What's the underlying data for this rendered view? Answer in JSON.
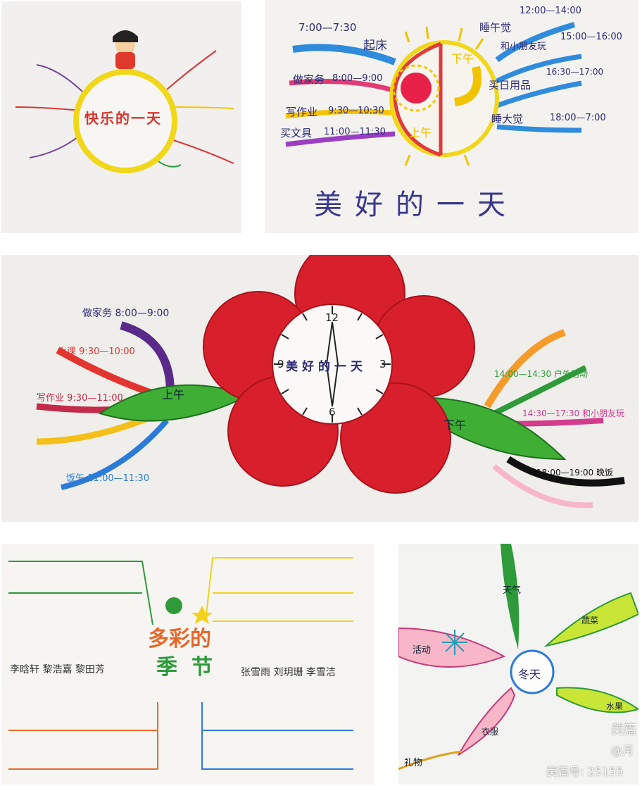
{
  "photos": {
    "p1": {
      "title": "快乐的一天"
    },
    "p2": {
      "caption": "美好的一天",
      "morning_label": "上午",
      "afternoon_label": "下午",
      "items_left": [
        {
          "time": "7:00—7:30",
          "text": "起床"
        },
        {
          "time": "8:00—9:00",
          "text": "做家务"
        },
        {
          "time": "9:30—10:30",
          "text": "写作业"
        },
        {
          "time": "11:00—11:30",
          "text": "买文具"
        }
      ],
      "items_right": [
        {
          "time": "12:00—14:00",
          "text": "睡午觉"
        },
        {
          "time": "15:00—16:00",
          "text": "和小朋友玩"
        },
        {
          "time": "16:30—17:00",
          "text": "买日用品"
        },
        {
          "time": "18:00—7:00",
          "text": "睡大觉"
        }
      ]
    },
    "p3": {
      "clock_text": "美好的一天",
      "clock_numbers": [
        "12",
        "3",
        "6",
        "9"
      ],
      "morning_label": "上午",
      "afternoon_label": "下午",
      "morning_items": [
        {
          "text": "做家务",
          "time": "8:00—9:00"
        },
        {
          "text": "上课",
          "time": "9:30—10:00"
        },
        {
          "text": "写作业",
          "time": "9:30—11:00"
        },
        {
          "text": "饭午",
          "time": "11:00—11:30"
        }
      ],
      "afternoon_items": [
        {
          "time": "14:00—14:30",
          "text": "户外活动"
        },
        {
          "time": "14:30—17:30",
          "text": "和小朋友玩"
        },
        {
          "time": "18:00—19:00",
          "text": "晚饭"
        }
      ]
    },
    "p4": {
      "title_line1": "多彩的",
      "title_line2": "季节",
      "names_left": "李晗轩 黎浩嘉 黎田芳",
      "names_right": "张雪雨 刘玥珊 李雪洁"
    },
    "p5": {
      "center": "冬天",
      "branches": [
        "天气",
        "活动",
        "蔬菜",
        "水果",
        "衣服",
        "礼物"
      ]
    }
  },
  "watermark": {
    "brand": "美篇",
    "author": "@月",
    "id_label": "美篇号: 25155"
  },
  "colors": {
    "flower_red": "#d8202c",
    "leaf_green": "#3fae35",
    "ink_blue": "#2b2a7a",
    "sun_yellow": "#f3d21c"
  }
}
